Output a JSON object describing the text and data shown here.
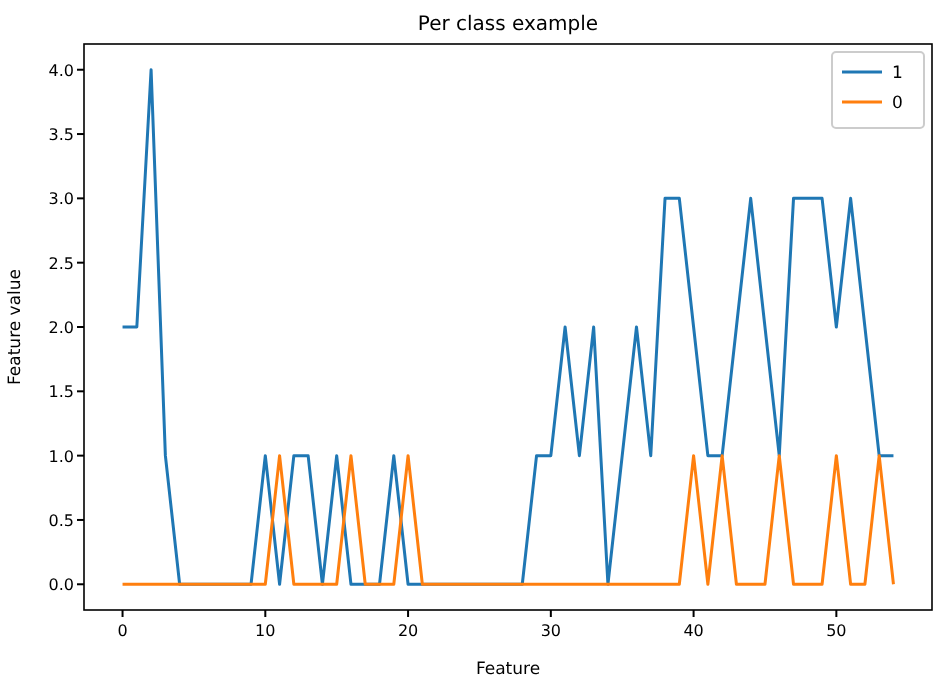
{
  "chart_data": {
    "type": "line",
    "title": "Per class example",
    "xlabel": "Feature",
    "ylabel": "Feature value",
    "x": [
      0,
      1,
      2,
      3,
      4,
      5,
      6,
      7,
      8,
      9,
      10,
      11,
      12,
      13,
      14,
      15,
      16,
      17,
      18,
      19,
      20,
      21,
      22,
      23,
      24,
      25,
      26,
      27,
      28,
      29,
      30,
      31,
      32,
      33,
      34,
      35,
      36,
      37,
      38,
      39,
      40,
      41,
      42,
      43,
      44,
      45,
      46,
      47,
      48,
      49,
      50,
      51,
      52,
      53,
      54
    ],
    "series": [
      {
        "name": "1",
        "color": "#1f77b4",
        "values": [
          2,
          2,
          4,
          1,
          0,
          0,
          0,
          0,
          0,
          0,
          1,
          0,
          1,
          1,
          0,
          1,
          0,
          0,
          0,
          1,
          0,
          0,
          0,
          0,
          0,
          0,
          0,
          0,
          0,
          1,
          1,
          2,
          1,
          2,
          0,
          1,
          2,
          1,
          3,
          3,
          2,
          1,
          1,
          2,
          3,
          2,
          1,
          3,
          3,
          3,
          2,
          3,
          2,
          1,
          1
        ]
      },
      {
        "name": "0",
        "color": "#ff7f0e",
        "values": [
          0,
          0,
          0,
          0,
          0,
          0,
          0,
          0,
          0,
          0,
          0,
          1,
          0,
          0,
          0,
          0,
          1,
          0,
          0,
          0,
          1,
          0,
          0,
          0,
          0,
          0,
          0,
          0,
          0,
          0,
          0,
          0,
          0,
          0,
          0,
          0,
          0,
          0,
          0,
          0,
          1,
          0,
          1,
          0,
          0,
          0,
          1,
          0,
          0,
          0,
          1,
          0,
          0,
          1,
          0
        ]
      }
    ],
    "xlim": [
      -2.7,
      56.7
    ],
    "ylim": [
      -0.2,
      4.2
    ],
    "xticks": [
      0,
      10,
      20,
      30,
      40,
      50
    ],
    "yticks": [
      {
        "value": 0,
        "label": "0.0"
      },
      {
        "value": 0.5,
        "label": "0.5"
      },
      {
        "value": 1,
        "label": "1.0"
      },
      {
        "value": 1.5,
        "label": "1.5"
      },
      {
        "value": 2,
        "label": "2.0"
      },
      {
        "value": 2.5,
        "label": "2.5"
      },
      {
        "value": 3,
        "label": "3.0"
      },
      {
        "value": 3.5,
        "label": "3.5"
      },
      {
        "value": 4,
        "label": "4.0"
      }
    ],
    "grid": false,
    "legend": "top right"
  }
}
